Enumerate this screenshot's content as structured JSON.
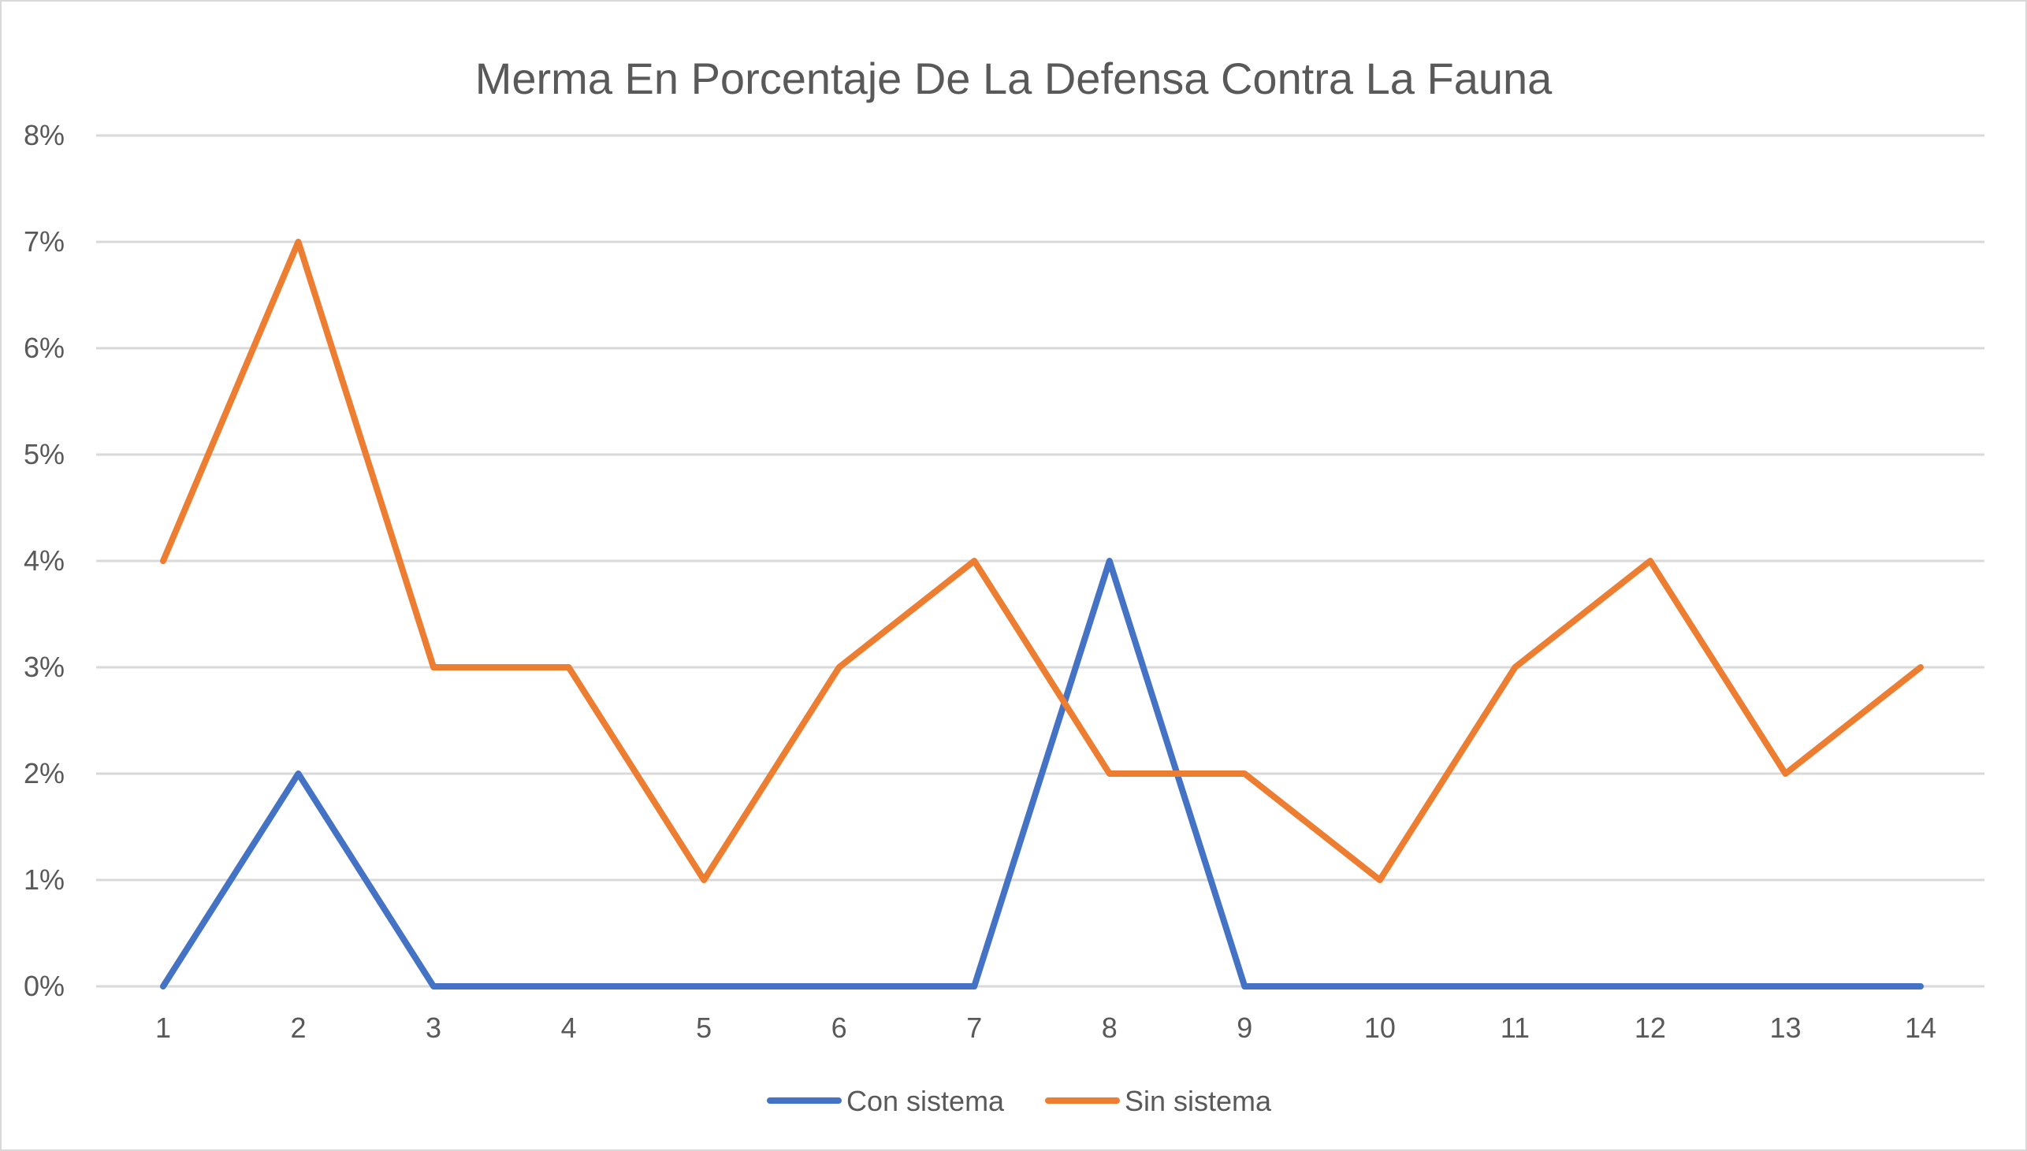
{
  "chart_data": {
    "type": "line",
    "title": "Merma En Porcentaje De La Defensa Contra La Fauna",
    "xlabel": "",
    "ylabel": "",
    "x": [
      1,
      2,
      3,
      4,
      5,
      6,
      7,
      8,
      9,
      10,
      11,
      12,
      13,
      14
    ],
    "x_tick_labels": [
      "1",
      "2",
      "3",
      "4",
      "5",
      "6",
      "7",
      "8",
      "9",
      "10",
      "11",
      "12",
      "13",
      "14"
    ],
    "y_ticks": [
      0,
      1,
      2,
      3,
      4,
      5,
      6,
      7,
      8
    ],
    "y_tick_labels": [
      "0%",
      "1%",
      "2%",
      "3%",
      "4%",
      "5%",
      "6%",
      "7%",
      "8%"
    ],
    "ylim": [
      0,
      8
    ],
    "y_unit": "%",
    "grid": true,
    "legend_position": "bottom",
    "series": [
      {
        "name": "Con sistema",
        "color": "#4472c4",
        "values": [
          0,
          2,
          0,
          0,
          0,
          0,
          0,
          4,
          0,
          0,
          0,
          0,
          0,
          0
        ]
      },
      {
        "name": "Sin sistema",
        "color": "#ed7d31",
        "values": [
          4,
          7,
          3,
          3,
          1,
          3,
          4,
          2,
          2,
          1,
          3,
          4,
          2,
          3
        ]
      }
    ]
  }
}
